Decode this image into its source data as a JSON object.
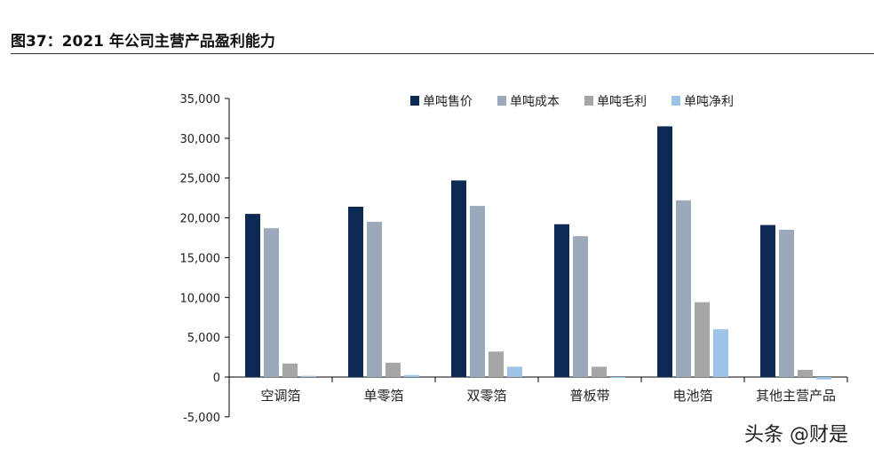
{
  "header": {
    "title": "图37：2021 年公司主营产品盈利能力"
  },
  "watermark": "头条 @财是",
  "chart_data": {
    "type": "bar",
    "title": "",
    "xlabel": "",
    "ylabel": "",
    "ylim": [
      -5000,
      35000
    ],
    "yticks": [
      -5000,
      0,
      5000,
      10000,
      15000,
      20000,
      25000,
      30000,
      35000
    ],
    "ytick_labels": [
      "-5,000",
      "0",
      "5,000",
      "10,000",
      "15,000",
      "20,000",
      "25,000",
      "30,000",
      "35,000"
    ],
    "legend_position": "top-right",
    "categories": [
      "空调箔",
      "单零箔",
      "双零箔",
      "普板带",
      "电池箔",
      "其他主营产品"
    ],
    "series": [
      {
        "name": "单吨售价",
        "color": "#0d2a54",
        "values": [
          20500,
          21400,
          24700,
          19200,
          31500,
          19100
        ]
      },
      {
        "name": "单吨成本",
        "color": "#9aaabb",
        "values": [
          18700,
          19500,
          21500,
          17700,
          22200,
          18500
        ]
      },
      {
        "name": "单吨毛利",
        "color": "#a6a6a6",
        "values": [
          1700,
          1800,
          3200,
          1300,
          9400,
          900
        ]
      },
      {
        "name": "单吨净利",
        "color": "#9dc3e6",
        "values": [
          150,
          250,
          1300,
          0,
          6000,
          -300
        ]
      }
    ]
  }
}
